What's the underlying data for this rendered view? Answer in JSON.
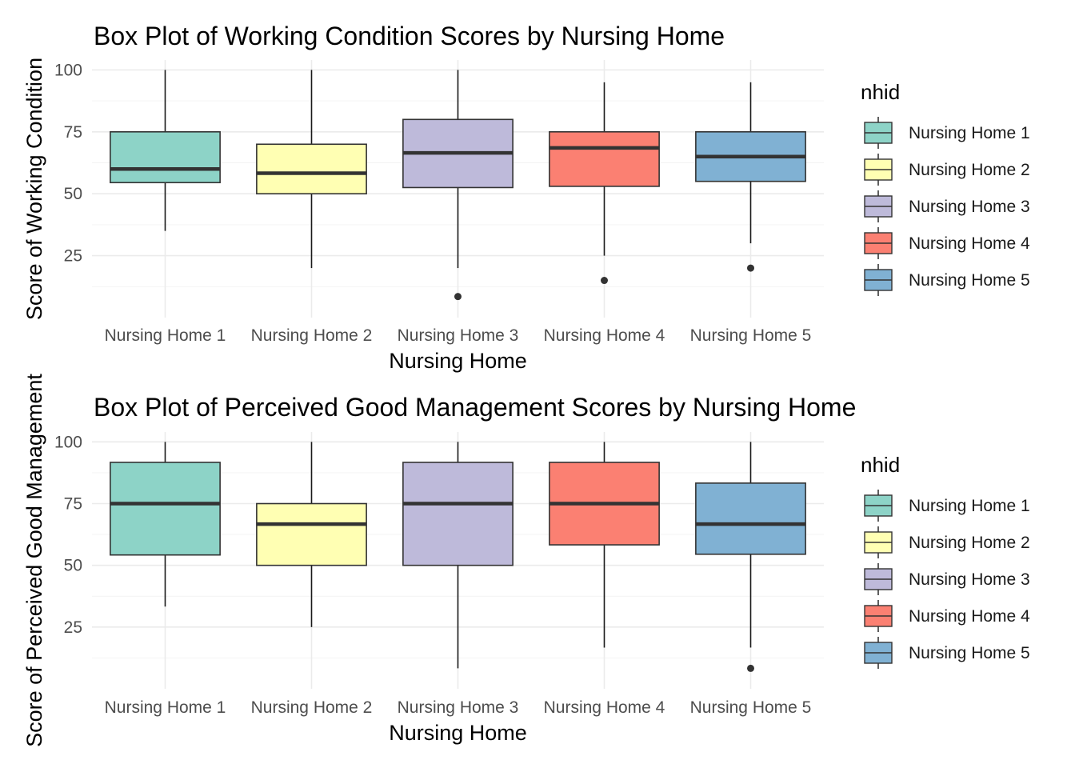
{
  "legend_title": "nhid",
  "chart_data": [
    {
      "type": "boxplot",
      "title": "Box Plot of Working Condition Scores by Nursing Home",
      "xlabel": "Nursing Home",
      "ylabel": "Score of Working Condition",
      "ylim": [
        0,
        104
      ],
      "yticks": [
        25,
        50,
        75,
        100
      ],
      "grid": true,
      "legend": "right",
      "categories": [
        "Nursing Home 1",
        "Nursing Home 2",
        "Nursing Home 3",
        "Nursing Home 4",
        "Nursing Home 5"
      ],
      "colors": [
        "#8dd3c7",
        "#ffffb3",
        "#bebada",
        "#fb8072",
        "#80b1d3"
      ],
      "boxes": [
        {
          "min": 35,
          "q1": 54.5,
          "median": 60,
          "q3": 75,
          "max": 100,
          "outliers": []
        },
        {
          "min": 20,
          "q1": 50,
          "median": 58.3,
          "q3": 70,
          "max": 100,
          "outliers": []
        },
        {
          "min": 20,
          "q1": 52.5,
          "median": 66.5,
          "q3": 80,
          "max": 100,
          "outliers": [
            8.5
          ]
        },
        {
          "min": 25,
          "q1": 53,
          "median": 68.5,
          "q3": 75,
          "max": 95,
          "outliers": [
            15
          ]
        },
        {
          "min": 30,
          "q1": 55,
          "median": 65,
          "q3": 75,
          "max": 95,
          "outliers": [
            20
          ]
        }
      ]
    },
    {
      "type": "boxplot",
      "title": "Box Plot of Perceived Good Management Scores by Nursing Home",
      "xlabel": "Nursing Home",
      "ylabel": "Score of Perceived Good Management",
      "ylim": [
        0,
        104
      ],
      "yticks": [
        25,
        50,
        75,
        100
      ],
      "grid": true,
      "legend": "right",
      "categories": [
        "Nursing Home 1",
        "Nursing Home 2",
        "Nursing Home 3",
        "Nursing Home 4",
        "Nursing Home 5"
      ],
      "colors": [
        "#8dd3c7",
        "#ffffb3",
        "#bebada",
        "#fb8072",
        "#80b1d3"
      ],
      "boxes": [
        {
          "min": 33.3,
          "q1": 54.2,
          "median": 75,
          "q3": 91.7,
          "max": 100,
          "outliers": []
        },
        {
          "min": 25,
          "q1": 50,
          "median": 66.7,
          "q3": 75,
          "max": 100,
          "outliers": []
        },
        {
          "min": 8.3,
          "q1": 50,
          "median": 75,
          "q3": 91.7,
          "max": 100,
          "outliers": []
        },
        {
          "min": 16.7,
          "q1": 58.3,
          "median": 75,
          "q3": 91.7,
          "max": 100,
          "outliers": []
        },
        {
          "min": 16.7,
          "q1": 54.5,
          "median": 66.7,
          "q3": 83.3,
          "max": 100,
          "outliers": [
            8.3
          ]
        }
      ]
    }
  ]
}
